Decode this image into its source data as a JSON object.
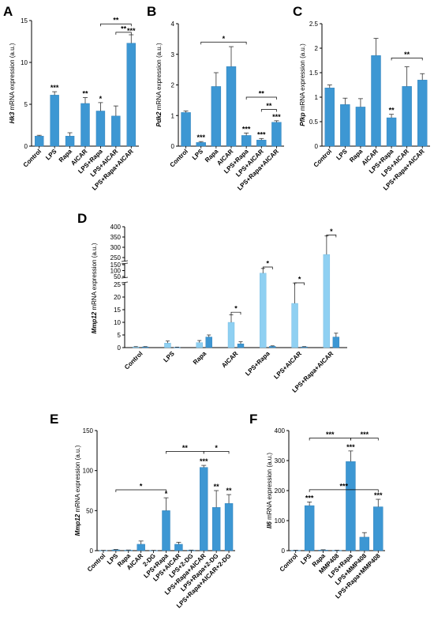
{
  "chart_data": [
    {
      "type": "bar",
      "panel": "A",
      "gene": "Hk3",
      "ylabel_suffix": " mRNA expression (a.u.)",
      "ylim": [
        0,
        15
      ],
      "ticks": [
        0,
        5,
        10,
        15
      ],
      "categories": [
        "Control",
        "LPS",
        "Rapa",
        "AICAR",
        "LPS+Rapa",
        "LPS+AICAR",
        "LPS+Rapa+AICAR"
      ],
      "values": [
        1.2,
        6.1,
        1.2,
        5.1,
        4.2,
        3.6,
        12.3
      ],
      "errors": [
        0.1,
        0.4,
        0.4,
        0.7,
        1.0,
        1.2,
        1.0
      ],
      "sig": [
        "",
        "***",
        "",
        "**",
        "*",
        "",
        "***"
      ],
      "brackets": [
        {
          "from": 4,
          "to": 6,
          "label": "**",
          "y": 14.6
        },
        {
          "from": 5,
          "to": 6,
          "label": "**",
          "y": 13.6
        }
      ]
    },
    {
      "type": "bar",
      "panel": "B",
      "gene": "Pdk2",
      "ylabel_suffix": " mRNA expression (a.u.)",
      "ylim": [
        0,
        4
      ],
      "ticks": [
        0,
        1,
        2,
        3,
        4
      ],
      "categories": [
        "Control",
        "LPS",
        "Rapa",
        "AICAR",
        "LPS+Rapa",
        "LPS+AICAR",
        "LPS+Rapa+AICAR"
      ],
      "values": [
        1.1,
        0.12,
        1.95,
        2.6,
        0.35,
        0.2,
        0.78
      ],
      "errors": [
        0.05,
        0.03,
        0.45,
        0.65,
        0.08,
        0.05,
        0.05
      ],
      "sig": [
        "",
        "***",
        "",
        "",
        "***",
        "***",
        "***"
      ],
      "brackets": [
        {
          "from": 1,
          "to": 4,
          "label": "*",
          "y": 3.4
        },
        {
          "from": 4,
          "to": 6,
          "label": "**",
          "y": 1.6
        },
        {
          "from": 5,
          "to": 6,
          "label": "**",
          "y": 1.2
        }
      ]
    },
    {
      "type": "bar",
      "panel": "C",
      "gene": "Pfkp",
      "ylabel_suffix": " mRNA expression (a.u.)",
      "ylim": [
        0,
        2.5
      ],
      "ticks": [
        0,
        0.5,
        1.0,
        1.5,
        2.0,
        2.5
      ],
      "categories": [
        "Control",
        "LPS",
        "Rapa",
        "AICAR",
        "LPS+Rapa",
        "LPS+AICAR",
        "LPS+Rapa+AICAR"
      ],
      "values": [
        1.19,
        0.85,
        0.8,
        1.85,
        0.58,
        1.22,
        1.35
      ],
      "errors": [
        0.06,
        0.13,
        0.17,
        0.35,
        0.07,
        0.4,
        0.13
      ],
      "sig": [
        "",
        "",
        "",
        "",
        "**",
        "",
        ""
      ],
      "brackets": [
        {
          "from": 4,
          "to": 6,
          "label": "**",
          "y": 1.8
        }
      ]
    },
    {
      "type": "bar",
      "panel": "D",
      "gene": "Mmp12",
      "ylabel_suffix": " mRNA expression (a.u.)",
      "broken_axis": true,
      "ticks": [
        0,
        5,
        10,
        15,
        20,
        25,
        50,
        100,
        150,
        250,
        300,
        350,
        400
      ],
      "categories": [
        "Control",
        "LPS",
        "Rapa",
        "AICAR",
        "LPS+Rapa",
        "LPS+AICAR",
        "LPS+Rapa+AICAR"
      ],
      "series": [
        {
          "name": "",
          "color": "#8fd0f2",
          "values": [
            0.3,
            1.8,
            2.0,
            10.0,
            78.0,
            17.5,
            265.0
          ],
          "errors": [
            0.1,
            0.8,
            0.8,
            3.0,
            40.0,
            12.0,
            90.0
          ]
        },
        {
          "name": "",
          "color": "#3d97d3",
          "values": [
            0.3,
            0.1,
            4.2,
            1.5,
            0.5,
            0.3,
            4.2
          ],
          "errors": [
            0.1,
            0.1,
            0.8,
            0.8,
            0.2,
            0.1,
            1.5
          ]
        }
      ],
      "brackets": [
        {
          "group": 3,
          "label": "*",
          "y": 14.0
        },
        {
          "group": 4,
          "label": "*",
          "y": 130.0
        },
        {
          "group": 5,
          "label": "*",
          "y": 30.0
        },
        {
          "group": 6,
          "label": "*",
          "y": 360.0
        }
      ]
    },
    {
      "type": "bar",
      "panel": "E",
      "gene": "Mmp12",
      "ylabel_suffix": " mRNA expression (a.u.)",
      "ylim": [
        0,
        150
      ],
      "ticks": [
        0,
        50,
        100,
        150
      ],
      "categories": [
        "Control",
        "LPS",
        "Rapa",
        "AICAR",
        "2-DG",
        "LPS+Rapa",
        "LPS+AICAR",
        "LPS+2-DG",
        "LPS+Rapa+AICAR",
        "LPS+Rapa+2-DG",
        "LPS+Rapa+AICAR+2-DG"
      ],
      "values": [
        0.3,
        1.0,
        0.5,
        8.0,
        0.3,
        50.0,
        8.0,
        0.5,
        104.0,
        54.0,
        59.0
      ],
      "errors": [
        0.1,
        0.5,
        0.3,
        4.0,
        0.1,
        16.0,
        2.5,
        0.2,
        2.5,
        21.0,
        11.0
      ],
      "sig": [
        "",
        "",
        "",
        "",
        "",
        "*",
        "",
        "",
        "***",
        "**",
        "**"
      ],
      "brackets": [
        {
          "from": 1,
          "to": 5,
          "label": "*",
          "y": 76
        },
        {
          "from": 5,
          "to": 8,
          "label": "**",
          "y": 124
        },
        {
          "from": 8,
          "to": 10,
          "label": "*",
          "y": 124
        }
      ]
    },
    {
      "type": "bar",
      "panel": "F",
      "gene": "Il6",
      "ylabel_suffix": " mRNA expression (a.u.)",
      "ylim": [
        0,
        400
      ],
      "ticks": [
        0,
        100,
        200,
        300,
        400
      ],
      "categories": [
        "Control",
        "LPS",
        "Rapa",
        "MMP408",
        "LPS+Rapa",
        "LPS+MMP408",
        "LPS+Rapa+MMP408"
      ],
      "values": [
        1.0,
        150.0,
        2.0,
        1.0,
        297.0,
        45.0,
        146.0
      ],
      "errors": [
        0.5,
        12.0,
        1.0,
        0.5,
        35.0,
        15.0,
        25.0
      ],
      "sig": [
        "",
        "***",
        "",
        "",
        "***",
        "",
        "***"
      ],
      "brackets": [
        {
          "from": 1,
          "to": 4,
          "label": "***",
          "y": 375
        },
        {
          "from": 4,
          "to": 6,
          "label": "***",
          "y": 375
        },
        {
          "from": 1,
          "to": 6,
          "label": "***",
          "y": 203
        }
      ]
    }
  ]
}
